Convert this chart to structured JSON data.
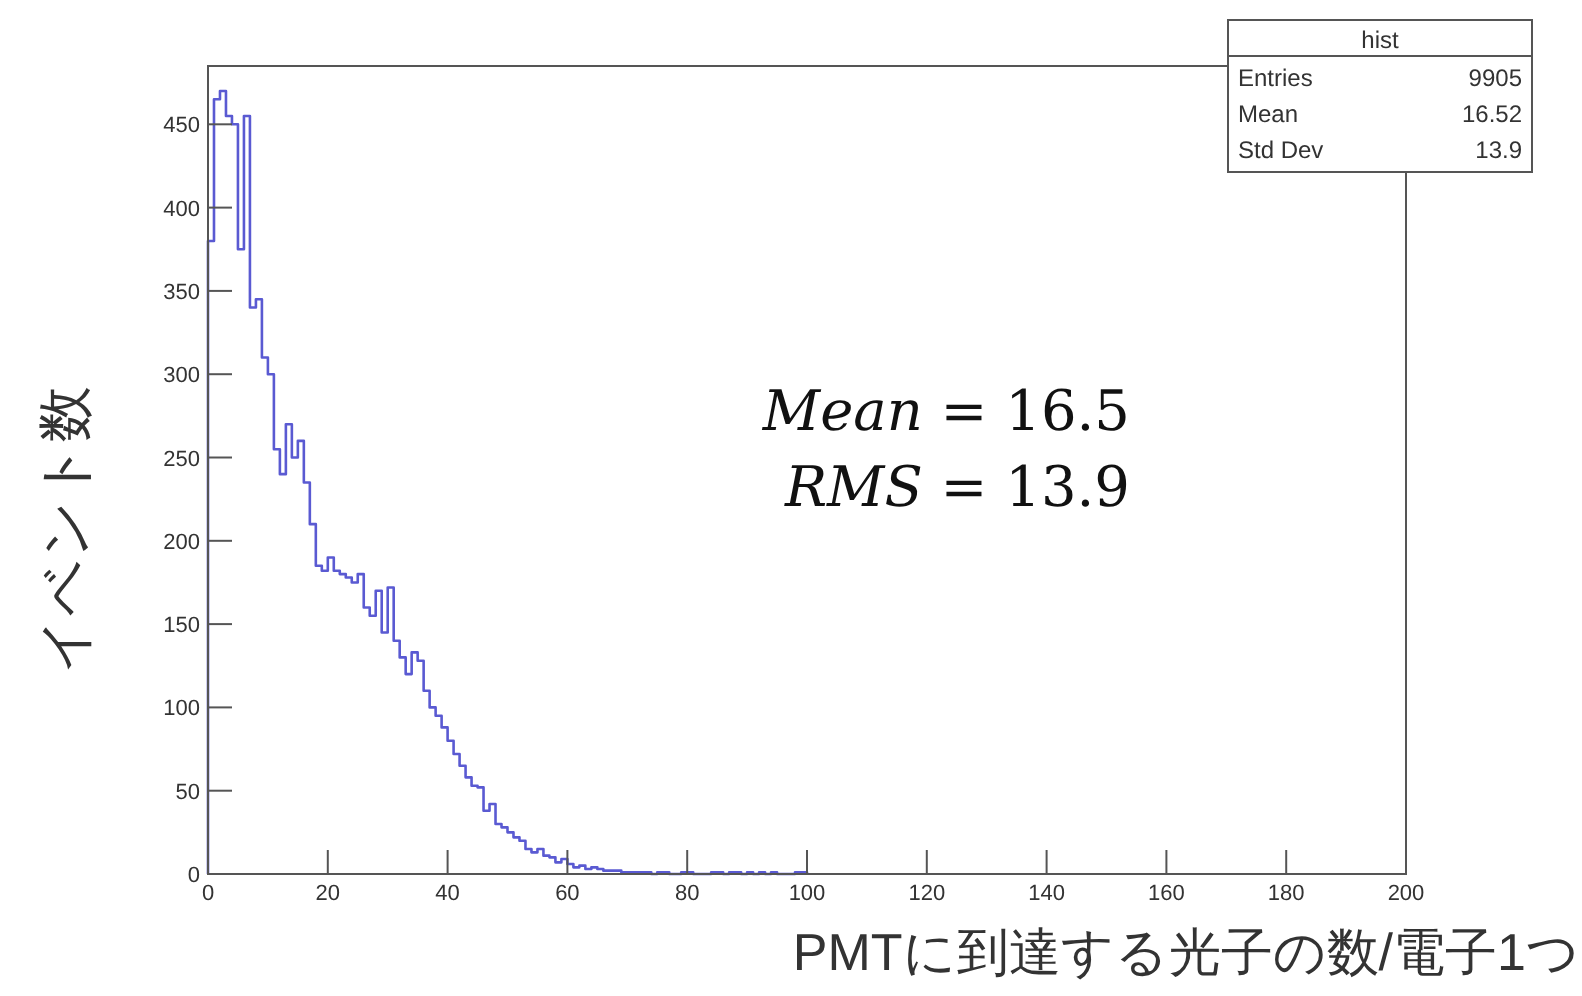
{
  "chart_data": {
    "type": "histogram",
    "xlabel": "PMTに到達する光子の数/電子1つ",
    "ylabel": "イベント数",
    "bins": [
      0,
      1,
      2,
      3,
      4,
      5,
      6,
      7,
      8,
      9,
      10,
      11,
      12,
      13,
      14,
      15,
      16,
      17,
      18,
      19,
      20,
      21,
      22,
      23,
      24,
      25,
      26,
      27,
      28,
      29,
      30,
      31,
      32,
      33,
      34,
      35,
      36,
      37,
      38,
      39,
      40,
      41,
      42,
      43,
      44,
      45,
      46,
      47,
      48,
      49,
      50,
      51,
      52,
      53,
      54,
      55,
      56,
      57,
      58,
      59,
      60,
      61,
      62,
      63,
      64,
      65,
      66,
      67,
      68,
      69,
      70,
      71,
      72,
      73,
      74,
      75,
      76,
      77,
      78,
      79,
      80,
      81,
      82,
      83,
      84,
      85,
      86,
      87,
      88,
      89,
      90,
      91,
      92,
      93,
      94,
      95,
      96,
      97,
      98,
      99,
      100
    ],
    "values": [
      380,
      465,
      470,
      455,
      450,
      375,
      455,
      340,
      345,
      310,
      300,
      255,
      240,
      270,
      250,
      260,
      235,
      210,
      185,
      182,
      190,
      182,
      180,
      178,
      175,
      180,
      160,
      155,
      170,
      145,
      172,
      140,
      130,
      120,
      133,
      128,
      110,
      100,
      95,
      88,
      80,
      72,
      65,
      58,
      53,
      52,
      38,
      42,
      30,
      28,
      25,
      22,
      20,
      15,
      13,
      15,
      11,
      10,
      7,
      9,
      6,
      4,
      5,
      3,
      4,
      3,
      2,
      2,
      2,
      1,
      1,
      1,
      1,
      1,
      0,
      1,
      1,
      0,
      0,
      1,
      1,
      0,
      0,
      0,
      1,
      1,
      0,
      1,
      1,
      0,
      1,
      0,
      1,
      0,
      1,
      0,
      0,
      0,
      1,
      1
    ],
    "color": "#5a5ad2",
    "xlim": [
      0,
      200
    ],
    "ylim": [
      0,
      485
    ],
    "xticks": [
      0,
      20,
      40,
      60,
      80,
      100,
      120,
      140,
      160,
      180,
      200
    ],
    "yticks": [
      0,
      50,
      100,
      150,
      200,
      250,
      300,
      350,
      400,
      450
    ],
    "grid": false,
    "annotations": [
      "hist",
      "Entries",
      "9905",
      "Mean",
      "16.52",
      "Std Dev",
      "13.9",
      "*Mean* = 16.5",
      "*RMS* = 13.9"
    ]
  }
}
